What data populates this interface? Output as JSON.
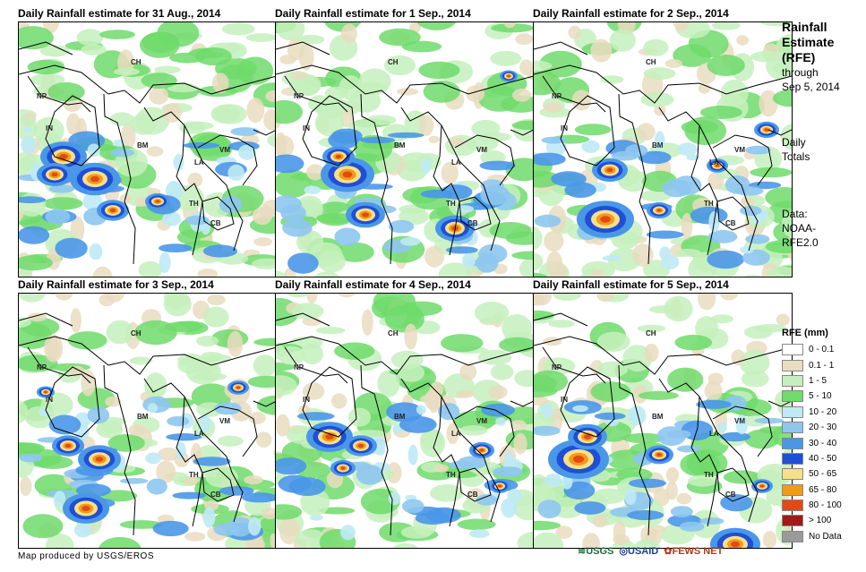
{
  "panels": [
    {
      "title": "Daily Rainfall estimate for 31 Aug., 2014"
    },
    {
      "title": "Daily Rainfall estimate for 1 Sep., 2014"
    },
    {
      "title": "Daily Rainfall estimate for 2 Sep., 2014"
    },
    {
      "title": "Daily Rainfall estimate for 3 Sep., 2014"
    },
    {
      "title": "Daily Rainfall estimate for 4 Sep., 2014"
    },
    {
      "title": "Daily Rainfall estimate for 5 Sep., 2014"
    }
  ],
  "countries": {
    "ch": "CH",
    "np": "NP",
    "in": "IN",
    "bm": "BM",
    "la": "LA",
    "vm": "VM",
    "th": "TH",
    "cb": "CB"
  },
  "sidebar": {
    "title_line1": "Rainfall",
    "title_line2": "Estimate",
    "title_line3": "(RFE)",
    "through_line1": "through",
    "through_line2": "Sep 5, 2014",
    "totals_line1": "Daily",
    "totals_line2": "Totals",
    "data_line1": "Data:",
    "data_line2": "NOAA-",
    "data_line3": "RFE2.0"
  },
  "legend": {
    "title": "RFE (mm)",
    "items": [
      {
        "label": "0 - 0.1",
        "color": "#ffffff"
      },
      {
        "label": "0.1 - 1",
        "color": "#e9dcbf"
      },
      {
        "label": "1 - 5",
        "color": "#c5f0bd"
      },
      {
        "label": "5 - 10",
        "color": "#6fdb6b"
      },
      {
        "label": "10 - 20",
        "color": "#bfeaf5"
      },
      {
        "label": "20 - 30",
        "color": "#8ec6f0"
      },
      {
        "label": "30 - 40",
        "color": "#4a97e8"
      },
      {
        "label": "40 - 50",
        "color": "#1e4fd6"
      },
      {
        "label": "50 - 65",
        "color": "#f7e08a"
      },
      {
        "label": "65 - 80",
        "color": "#f29a1a"
      },
      {
        "label": "80 - 100",
        "color": "#e34a12"
      },
      {
        "label": "> 100",
        "color": "#a31818"
      },
      {
        "label": "No Data",
        "color": "#9a9a9a"
      }
    ]
  },
  "credit": "Map produced by USGS/EROS",
  "logos": {
    "usgs": "USGS",
    "usaid": "USAID",
    "fews": "FEWS NET"
  }
}
